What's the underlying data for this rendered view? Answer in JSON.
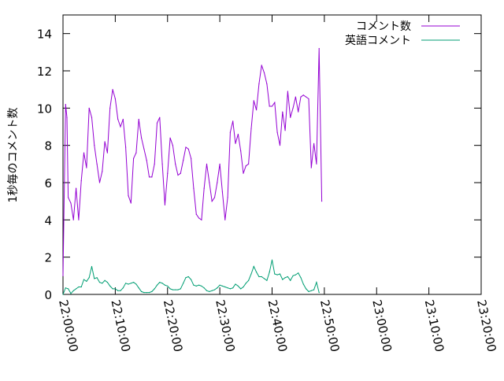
{
  "chart_data": {
    "type": "line",
    "title": "",
    "xlabel": "",
    "ylabel": "1秒毎のコメント数",
    "x_range": [
      "22:00:00",
      "23:20:00"
    ],
    "ylim": [
      0,
      15
    ],
    "x_ticks": [
      "22:00:00",
      "22:10:00",
      "22:20:00",
      "22:30:00",
      "22:40:00",
      "22:50:00",
      "23:00:00",
      "23:10:00",
      "23:20:00"
    ],
    "y_ticks": [
      "0",
      "2",
      "4",
      "6",
      "8",
      "10",
      "12",
      "14"
    ],
    "grid": false,
    "legend_position": "top-right",
    "series": [
      {
        "name": "コメント数",
        "color": "#9400d3",
        "points": [
          [
            "22:00:00",
            1.0
          ],
          [
            "22:00:30",
            10.2
          ],
          [
            "22:00:45",
            9.5
          ],
          [
            "22:01:00",
            5.2
          ],
          [
            "22:01:30",
            4.9
          ],
          [
            "22:02:00",
            4.0
          ],
          [
            "22:02:30",
            5.7
          ],
          [
            "22:03:00",
            4.0
          ],
          [
            "22:03:30",
            6.1
          ],
          [
            "22:04:00",
            7.6
          ],
          [
            "22:04:30",
            6.8
          ],
          [
            "22:05:00",
            10.0
          ],
          [
            "22:05:30",
            9.5
          ],
          [
            "22:06:00",
            8.0
          ],
          [
            "22:06:30",
            7.0
          ],
          [
            "22:07:00",
            6.0
          ],
          [
            "22:07:30",
            6.6
          ],
          [
            "22:08:00",
            8.2
          ],
          [
            "22:08:30",
            7.6
          ],
          [
            "22:09:00",
            10.0
          ],
          [
            "22:09:30",
            11.0
          ],
          [
            "22:10:00",
            10.5
          ],
          [
            "22:10:30",
            9.4
          ],
          [
            "22:11:00",
            9.0
          ],
          [
            "22:11:30",
            9.4
          ],
          [
            "22:12:00",
            7.9
          ],
          [
            "22:12:30",
            5.3
          ],
          [
            "22:13:00",
            4.9
          ],
          [
            "22:13:30",
            7.3
          ],
          [
            "22:14:00",
            7.6
          ],
          [
            "22:14:30",
            9.4
          ],
          [
            "22:15:00",
            8.4
          ],
          [
            "22:15:30",
            7.8
          ],
          [
            "22:16:00",
            7.2
          ],
          [
            "22:16:30",
            6.3
          ],
          [
            "22:17:00",
            6.3
          ],
          [
            "22:17:30",
            7.0
          ],
          [
            "22:18:00",
            9.2
          ],
          [
            "22:18:30",
            9.5
          ],
          [
            "22:19:00",
            7.0
          ],
          [
            "22:19:30",
            4.8
          ],
          [
            "22:20:00",
            6.5
          ],
          [
            "22:20:30",
            8.4
          ],
          [
            "22:21:00",
            8.0
          ],
          [
            "22:21:30",
            7.0
          ],
          [
            "22:22:00",
            6.4
          ],
          [
            "22:22:30",
            6.5
          ],
          [
            "22:23:00",
            7.2
          ],
          [
            "22:23:30",
            7.9
          ],
          [
            "22:24:00",
            7.8
          ],
          [
            "22:24:30",
            7.3
          ],
          [
            "22:25:00",
            5.7
          ],
          [
            "22:25:30",
            4.3
          ],
          [
            "22:26:00",
            4.1
          ],
          [
            "22:26:30",
            4.0
          ],
          [
            "22:27:00",
            5.7
          ],
          [
            "22:27:30",
            7.0
          ],
          [
            "22:28:00",
            6.0
          ],
          [
            "22:28:30",
            5.0
          ],
          [
            "22:29:00",
            5.2
          ],
          [
            "22:29:30",
            6.0
          ],
          [
            "22:30:00",
            7.0
          ],
          [
            "22:30:30",
            5.5
          ],
          [
            "22:31:00",
            4.0
          ],
          [
            "22:31:30",
            5.2
          ],
          [
            "22:32:00",
            8.7
          ],
          [
            "22:32:30",
            9.3
          ],
          [
            "22:33:00",
            8.1
          ],
          [
            "22:33:30",
            8.6
          ],
          [
            "22:34:00",
            7.7
          ],
          [
            "22:34:30",
            6.5
          ],
          [
            "22:35:00",
            6.9
          ],
          [
            "22:35:30",
            7.0
          ],
          [
            "22:36:00",
            8.9
          ],
          [
            "22:36:30",
            10.4
          ],
          [
            "22:37:00",
            9.9
          ],
          [
            "22:37:30",
            11.3
          ],
          [
            "22:38:00",
            12.3
          ],
          [
            "22:38:30",
            11.9
          ],
          [
            "22:39:00",
            11.3
          ],
          [
            "22:39:30",
            10.1
          ],
          [
            "22:40:00",
            10.1
          ],
          [
            "22:40:30",
            10.3
          ],
          [
            "22:41:00",
            8.7
          ],
          [
            "22:41:30",
            8.0
          ],
          [
            "22:42:00",
            9.8
          ],
          [
            "22:42:30",
            8.8
          ],
          [
            "22:43:00",
            10.9
          ],
          [
            "22:43:30",
            9.5
          ],
          [
            "22:44:00",
            10.0
          ],
          [
            "22:44:30",
            10.6
          ],
          [
            "22:45:00",
            9.8
          ],
          [
            "22:45:30",
            10.6
          ],
          [
            "22:46:00",
            10.7
          ],
          [
            "22:46:30",
            10.6
          ],
          [
            "22:47:00",
            10.5
          ],
          [
            "22:47:30",
            6.8
          ],
          [
            "22:48:00",
            8.1
          ],
          [
            "22:48:30",
            7.0
          ],
          [
            "22:49:00",
            13.2
          ],
          [
            "22:49:30",
            5.0
          ]
        ]
      },
      {
        "name": "英語コメント",
        "color": "#009e73",
        "points": [
          [
            "22:00:00",
            0.0
          ],
          [
            "22:00:30",
            0.35
          ],
          [
            "22:01:00",
            0.3
          ],
          [
            "22:01:30",
            0.05
          ],
          [
            "22:02:00",
            0.2
          ],
          [
            "22:02:30",
            0.3
          ],
          [
            "22:03:00",
            0.4
          ],
          [
            "22:03:30",
            0.4
          ],
          [
            "22:04:00",
            0.8
          ],
          [
            "22:04:30",
            0.7
          ],
          [
            "22:05:00",
            0.9
          ],
          [
            "22:05:30",
            1.5
          ],
          [
            "22:06:00",
            0.85
          ],
          [
            "22:06:30",
            0.9
          ],
          [
            "22:07:00",
            0.65
          ],
          [
            "22:07:30",
            0.6
          ],
          [
            "22:08:00",
            0.75
          ],
          [
            "22:08:30",
            0.65
          ],
          [
            "22:09:00",
            0.45
          ],
          [
            "22:09:30",
            0.3
          ],
          [
            "22:10:00",
            0.3
          ],
          [
            "22:10:30",
            0.2
          ],
          [
            "22:11:00",
            0.2
          ],
          [
            "22:11:30",
            0.35
          ],
          [
            "22:12:00",
            0.6
          ],
          [
            "22:12:30",
            0.55
          ],
          [
            "22:13:00",
            0.6
          ],
          [
            "22:13:30",
            0.65
          ],
          [
            "22:14:00",
            0.55
          ],
          [
            "22:14:30",
            0.35
          ],
          [
            "22:15:00",
            0.15
          ],
          [
            "22:15:30",
            0.1
          ],
          [
            "22:16:00",
            0.1
          ],
          [
            "22:16:30",
            0.1
          ],
          [
            "22:17:00",
            0.15
          ],
          [
            "22:17:30",
            0.3
          ],
          [
            "22:18:00",
            0.5
          ],
          [
            "22:18:30",
            0.65
          ],
          [
            "22:19:00",
            0.6
          ],
          [
            "22:19:30",
            0.5
          ],
          [
            "22:20:00",
            0.45
          ],
          [
            "22:20:30",
            0.3
          ],
          [
            "22:21:00",
            0.25
          ],
          [
            "22:21:30",
            0.25
          ],
          [
            "22:22:00",
            0.25
          ],
          [
            "22:22:30",
            0.3
          ],
          [
            "22:23:00",
            0.6
          ],
          [
            "22:23:30",
            0.9
          ],
          [
            "22:24:00",
            0.95
          ],
          [
            "22:24:30",
            0.8
          ],
          [
            "22:25:00",
            0.5
          ],
          [
            "22:25:30",
            0.45
          ],
          [
            "22:26:00",
            0.5
          ],
          [
            "22:26:30",
            0.45
          ],
          [
            "22:27:00",
            0.35
          ],
          [
            "22:27:30",
            0.2
          ],
          [
            "22:28:00",
            0.15
          ],
          [
            "22:28:30",
            0.2
          ],
          [
            "22:29:00",
            0.25
          ],
          [
            "22:29:30",
            0.35
          ],
          [
            "22:30:00",
            0.5
          ],
          [
            "22:30:30",
            0.45
          ],
          [
            "22:31:00",
            0.4
          ],
          [
            "22:31:30",
            0.35
          ],
          [
            "22:32:00",
            0.3
          ],
          [
            "22:32:30",
            0.35
          ],
          [
            "22:33:00",
            0.55
          ],
          [
            "22:33:30",
            0.45
          ],
          [
            "22:34:00",
            0.3
          ],
          [
            "22:34:30",
            0.4
          ],
          [
            "22:35:00",
            0.6
          ],
          [
            "22:35:30",
            0.75
          ],
          [
            "22:36:00",
            1.1
          ],
          [
            "22:36:30",
            1.5
          ],
          [
            "22:37:00",
            1.2
          ],
          [
            "22:37:30",
            0.95
          ],
          [
            "22:38:00",
            0.95
          ],
          [
            "22:38:30",
            0.85
          ],
          [
            "22:39:00",
            0.75
          ],
          [
            "22:39:30",
            1.2
          ],
          [
            "22:40:00",
            1.85
          ],
          [
            "22:40:30",
            1.1
          ],
          [
            "22:41:00",
            1.05
          ],
          [
            "22:41:30",
            1.1
          ],
          [
            "22:42:00",
            0.8
          ],
          [
            "22:42:30",
            0.9
          ],
          [
            "22:43:00",
            0.95
          ],
          [
            "22:43:30",
            0.75
          ],
          [
            "22:44:00",
            1.0
          ],
          [
            "22:44:30",
            1.05
          ],
          [
            "22:45:00",
            1.15
          ],
          [
            "22:45:30",
            0.9
          ],
          [
            "22:46:00",
            0.55
          ],
          [
            "22:46:30",
            0.3
          ],
          [
            "22:47:00",
            0.15
          ],
          [
            "22:47:30",
            0.2
          ],
          [
            "22:48:00",
            0.25
          ],
          [
            "22:48:30",
            0.65
          ],
          [
            "22:49:00",
            0.1
          ]
        ]
      }
    ]
  }
}
